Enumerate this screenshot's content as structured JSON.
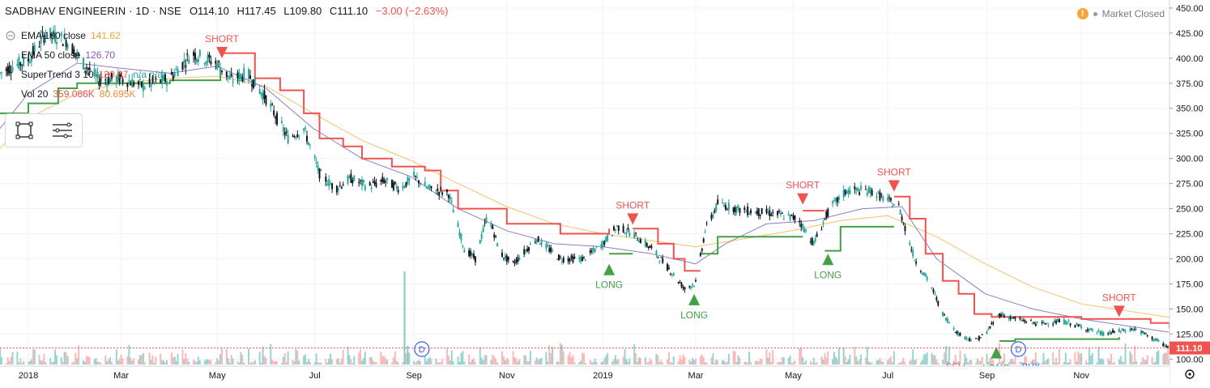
{
  "header": {
    "symbol": "SADBHAV ENGINEERIN · 1D · NSE",
    "open": "O114.10",
    "high": "H117.45",
    "low": "L109.80",
    "close": "C111.10",
    "change": "−3.00 (−2.63%)"
  },
  "legend": {
    "ema100_label": "EMA 100 close",
    "ema100_value": "141.62",
    "ema50_label": "EMA 50 close",
    "ema50_value": "126.70",
    "supertrend_label": "SuperTrend 3 10",
    "supertrend_value": "130.67",
    "supertrend_na": "n/a n/a",
    "vol_label": "Vol 20",
    "vol_value": "359.086K",
    "vol_ma_value": "80.695K"
  },
  "market_status": "Market Closed",
  "colors": {
    "up": "#26a69a",
    "down": "#ef5350",
    "ema100": "#f5c26b",
    "ema50": "#8e7cc3",
    "supertrend_down": "#ef5350",
    "supertrend_up": "#43a047",
    "grid": "#f0f3fa"
  },
  "chart_data": {
    "type": "candlestick",
    "y_ticks": [
      100,
      125,
      150,
      175,
      200,
      225,
      250,
      275,
      300,
      325,
      350,
      375,
      400,
      425,
      450
    ],
    "ylim": [
      93,
      458
    ],
    "xlim": [
      "2017-12-14",
      "2019-12-27"
    ],
    "x_ticks": [
      {
        "label": "2018",
        "date": "2018-01-01"
      },
      {
        "label": "Mar",
        "date": "2018-03-01"
      },
      {
        "label": "May",
        "date": "2018-05-01"
      },
      {
        "label": "Jul",
        "date": "2018-07-02"
      },
      {
        "label": "Sep",
        "date": "2018-09-03"
      },
      {
        "label": "Nov",
        "date": "2018-11-01"
      },
      {
        "label": "2019",
        "date": "2019-01-01"
      },
      {
        "label": "Mar",
        "date": "2019-03-01"
      },
      {
        "label": "May",
        "date": "2019-05-02"
      },
      {
        "label": "Jul",
        "date": "2019-07-01"
      },
      {
        "label": "Sep",
        "date": "2019-09-02"
      },
      {
        "label": "Nov",
        "date": "2019-11-01"
      }
    ],
    "last_price": "111.10",
    "price_path": [
      [
        "2017-12-14",
        385
      ],
      [
        "2017-12-22",
        392
      ],
      [
        "2018-01-01",
        398
      ],
      [
        "2018-01-12",
        425
      ],
      [
        "2018-01-25",
        418
      ],
      [
        "2018-02-05",
        395
      ],
      [
        "2018-02-15",
        378
      ],
      [
        "2018-03-01",
        380
      ],
      [
        "2018-03-15",
        372
      ],
      [
        "2018-04-01",
        380
      ],
      [
        "2018-04-15",
        405
      ],
      [
        "2018-05-01",
        395
      ],
      [
        "2018-05-10",
        378
      ],
      [
        "2018-05-20",
        385
      ],
      [
        "2018-06-01",
        360
      ],
      [
        "2018-06-15",
        320
      ],
      [
        "2018-06-25",
        330
      ],
      [
        "2018-07-05",
        285
      ],
      [
        "2018-07-15",
        270
      ],
      [
        "2018-07-25",
        280
      ],
      [
        "2018-08-05",
        272
      ],
      [
        "2018-08-15",
        278
      ],
      [
        "2018-08-25",
        270
      ],
      [
        "2018-09-03",
        282
      ],
      [
        "2018-09-12",
        270
      ],
      [
        "2018-09-25",
        265
      ],
      [
        "2018-10-05",
        210
      ],
      [
        "2018-10-12",
        200
      ],
      [
        "2018-10-20",
        245
      ],
      [
        "2018-10-28",
        205
      ],
      [
        "2018-11-05",
        195
      ],
      [
        "2018-11-20",
        220
      ],
      [
        "2018-12-05",
        200
      ],
      [
        "2018-12-20",
        200
      ],
      [
        "2019-01-01",
        215
      ],
      [
        "2019-01-10",
        232
      ],
      [
        "2019-01-20",
        225
      ],
      [
        "2019-02-01",
        210
      ],
      [
        "2019-02-12",
        190
      ],
      [
        "2019-02-22",
        170
      ],
      [
        "2019-03-01",
        176
      ],
      [
        "2019-03-07",
        228
      ],
      [
        "2019-03-15",
        255
      ],
      [
        "2019-04-01",
        248
      ],
      [
        "2019-04-20",
        245
      ],
      [
        "2019-05-05",
        240
      ],
      [
        "2019-05-15",
        215
      ],
      [
        "2019-05-25",
        250
      ],
      [
        "2019-06-05",
        268
      ],
      [
        "2019-06-20",
        268
      ],
      [
        "2019-07-01",
        258
      ],
      [
        "2019-07-08",
        252
      ],
      [
        "2019-07-18",
        200
      ],
      [
        "2019-07-28",
        175
      ],
      [
        "2019-08-05",
        145
      ],
      [
        "2019-08-15",
        125
      ],
      [
        "2019-08-25",
        118
      ],
      [
        "2019-09-01",
        125
      ],
      [
        "2019-09-10",
        145
      ],
      [
        "2019-09-20",
        140
      ],
      [
        "2019-10-05",
        135
      ],
      [
        "2019-10-20",
        138
      ],
      [
        "2019-11-05",
        130
      ],
      [
        "2019-11-15",
        125
      ],
      [
        "2019-11-25",
        128
      ],
      [
        "2019-12-05",
        130
      ],
      [
        "2019-12-15",
        122
      ],
      [
        "2019-12-27",
        111
      ]
    ],
    "ema100_path": [
      [
        "2017-12-14",
        310
      ],
      [
        "2018-01-01",
        340
      ],
      [
        "2018-02-01",
        365
      ],
      [
        "2018-03-01",
        375
      ],
      [
        "2018-04-01",
        380
      ],
      [
        "2018-05-01",
        382
      ],
      [
        "2018-06-01",
        372
      ],
      [
        "2018-07-01",
        345
      ],
      [
        "2018-08-01",
        318
      ],
      [
        "2018-09-01",
        298
      ],
      [
        "2018-10-01",
        275
      ],
      [
        "2018-11-01",
        252
      ],
      [
        "2018-12-01",
        235
      ],
      [
        "2019-01-01",
        225
      ],
      [
        "2019-02-01",
        218
      ],
      [
        "2019-03-01",
        212
      ],
      [
        "2019-04-01",
        220
      ],
      [
        "2019-05-01",
        228
      ],
      [
        "2019-06-01",
        238
      ],
      [
        "2019-07-01",
        243
      ],
      [
        "2019-08-01",
        222
      ],
      [
        "2019-09-01",
        195
      ],
      [
        "2019-10-01",
        172
      ],
      [
        "2019-11-01",
        155
      ],
      [
        "2019-12-27",
        141.62
      ]
    ],
    "ema50_path": [
      [
        "2017-12-14",
        330
      ],
      [
        "2018-01-01",
        365
      ],
      [
        "2018-02-01",
        395
      ],
      [
        "2018-03-01",
        390
      ],
      [
        "2018-04-01",
        385
      ],
      [
        "2018-05-01",
        392
      ],
      [
        "2018-06-01",
        370
      ],
      [
        "2018-07-01",
        330
      ],
      [
        "2018-08-01",
        300
      ],
      [
        "2018-09-01",
        282
      ],
      [
        "2018-10-01",
        250
      ],
      [
        "2018-11-01",
        228
      ],
      [
        "2018-12-01",
        215
      ],
      [
        "2019-01-01",
        212
      ],
      [
        "2019-02-01",
        205
      ],
      [
        "2019-03-01",
        195
      ],
      [
        "2019-03-20",
        215
      ],
      [
        "2019-04-15",
        235
      ],
      [
        "2019-05-15",
        238
      ],
      [
        "2019-06-15",
        250
      ],
      [
        "2019-07-10",
        252
      ],
      [
        "2019-08-01",
        200
      ],
      [
        "2019-09-01",
        165
      ],
      [
        "2019-10-01",
        150
      ],
      [
        "2019-11-01",
        140
      ],
      [
        "2019-12-27",
        126.7
      ]
    ],
    "supertrend_down_segments": [
      [
        [
          "2018-05-04",
          405
        ],
        [
          "2018-05-20",
          405
        ],
        [
          "2018-05-25",
          380
        ],
        [
          "2018-06-10",
          368
        ],
        [
          "2018-06-25",
          345
        ],
        [
          "2018-07-05",
          320
        ],
        [
          "2018-07-20",
          312
        ],
        [
          "2018-08-01",
          300
        ],
        [
          "2018-08-20",
          292
        ],
        [
          "2018-09-10",
          288
        ],
        [
          "2018-09-20",
          268
        ],
        [
          "2018-10-01",
          250
        ],
        [
          "2018-10-20",
          250
        ],
        [
          "2018-11-01",
          235
        ],
        [
          "2018-11-25",
          235
        ],
        [
          "2018-12-05",
          225
        ],
        [
          "2018-12-25",
          225
        ],
        [
          "2019-01-05",
          230
        ]
      ],
      [
        [
          "2019-01-20",
          230
        ],
        [
          "2019-02-05",
          215
        ],
        [
          "2019-02-15",
          200
        ],
        [
          "2019-02-22",
          188
        ],
        [
          "2019-03-04",
          188
        ]
      ],
      [
        [
          "2019-05-08",
          248
        ],
        [
          "2019-05-22",
          248
        ]
      ],
      [
        [
          "2019-07-05",
          262
        ],
        [
          "2019-07-15",
          240
        ],
        [
          "2019-07-25",
          205
        ],
        [
          "2019-08-05",
          178
        ],
        [
          "2019-08-15",
          165
        ],
        [
          "2019-08-25",
          145
        ],
        [
          "2019-09-05",
          142
        ],
        [
          "2019-10-10",
          142
        ],
        [
          "2019-11-01",
          140
        ],
        [
          "2019-12-15",
          136
        ],
        [
          "2019-12-27",
          130.67
        ]
      ]
    ],
    "supertrend_up_segments": [
      [
        [
          "2017-12-14",
          345
        ],
        [
          "2018-01-01",
          355
        ],
        [
          "2018-01-20",
          370
        ],
        [
          "2018-02-01",
          375
        ],
        [
          "2018-03-01",
          375
        ],
        [
          "2018-04-01",
          378
        ],
        [
          "2018-05-03",
          390
        ]
      ],
      [
        [
          "2019-01-05",
          205
        ],
        [
          "2019-01-20",
          205
        ]
      ],
      [
        [
          "2019-03-04",
          205
        ],
        [
          "2019-03-15",
          222
        ],
        [
          "2019-05-08",
          222
        ]
      ],
      [
        [
          "2019-05-22",
          208
        ],
        [
          "2019-06-01",
          232
        ],
        [
          "2019-07-05",
          232
        ]
      ],
      [
        [
          "2019-09-10",
          118
        ],
        [
          "2019-09-20",
          120
        ],
        [
          "2019-10-25",
          120
        ],
        [
          "2019-11-25",
          122
        ]
      ]
    ],
    "signals": [
      {
        "label": "SHORT",
        "type": "short",
        "date": "2018-05-04",
        "price": 400
      },
      {
        "label": "SHORT",
        "type": "short",
        "date": "2019-01-20",
        "price": 234
      },
      {
        "label": "SHORT",
        "type": "short",
        "date": "2019-05-08",
        "price": 254
      },
      {
        "label": "SHORT",
        "type": "short",
        "date": "2019-07-05",
        "price": 267
      },
      {
        "label": "SHORT",
        "type": "short",
        "date": "2019-11-25",
        "price": 142
      },
      {
        "label": "LONG",
        "type": "long",
        "date": "2019-01-05",
        "price": 195
      },
      {
        "label": "LONG",
        "type": "long",
        "date": "2019-02-28",
        "price": 165
      },
      {
        "label": "LONG",
        "type": "long",
        "date": "2019-05-24",
        "price": 205
      },
      {
        "label": "LONG",
        "type": "long",
        "date": "2019-09-08",
        "price": 112
      }
    ],
    "volume_spikes": [
      {
        "date": "2018-08-28",
        "rel": 1.0
      },
      {
        "date": "2018-08-30",
        "rel": 0.2
      }
    ],
    "dividend_markers": [
      {
        "label": "D",
        "date": "2018-09-08"
      },
      {
        "label": "D",
        "date": "2019-09-22"
      }
    ],
    "bottom_cut_labels": [
      "SELL",
      "BUY"
    ]
  }
}
